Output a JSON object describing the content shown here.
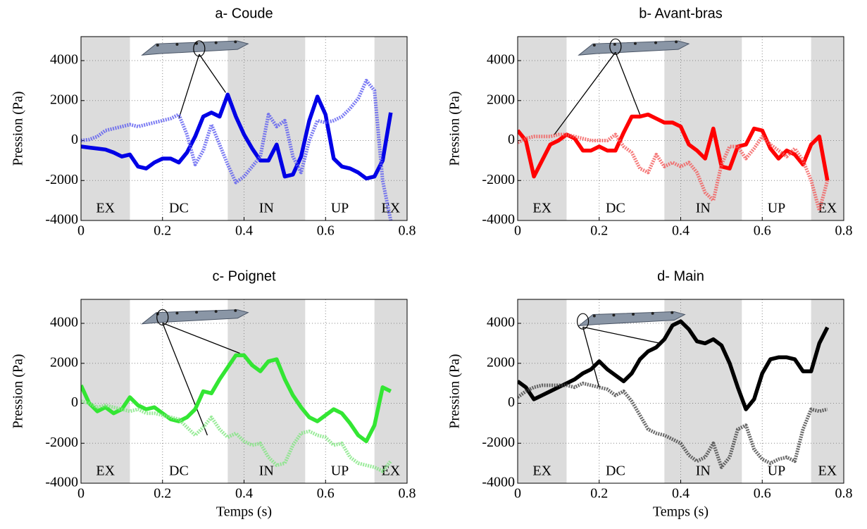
{
  "chart_data": [
    {
      "type": "line",
      "title": "a- Coude",
      "ylabel": "Pression (Pa)",
      "xlim": [
        0,
        0.8
      ],
      "ylim": [
        -4000,
        5200
      ],
      "xticks": [
        0,
        0.2,
        0.4,
        0.6,
        0.8
      ],
      "yticks": [
        -4000,
        -2000,
        0,
        2000,
        4000
      ],
      "grid": true,
      "phases": [
        {
          "label": "EX",
          "start": 0,
          "end": 0.12,
          "shaded": true
        },
        {
          "label": "DC",
          "start": 0.12,
          "end": 0.36,
          "shaded": false
        },
        {
          "label": "IN",
          "start": 0.36,
          "end": 0.55,
          "shaded": true
        },
        {
          "label": "UP",
          "start": 0.55,
          "end": 0.72,
          "shaded": false
        },
        {
          "label": "EX",
          "start": 0.72,
          "end": 0.8,
          "shaded": true
        }
      ],
      "x": [
        0,
        0.02,
        0.04,
        0.06,
        0.08,
        0.1,
        0.12,
        0.14,
        0.16,
        0.18,
        0.2,
        0.22,
        0.24,
        0.26,
        0.28,
        0.3,
        0.32,
        0.34,
        0.36,
        0.38,
        0.4,
        0.42,
        0.44,
        0.46,
        0.48,
        0.5,
        0.52,
        0.54,
        0.56,
        0.58,
        0.6,
        0.62,
        0.64,
        0.66,
        0.68,
        0.7,
        0.72,
        0.74,
        0.76
      ],
      "series": [
        {
          "color": "#0000e6",
          "dash": false,
          "values": [
            -300,
            -350,
            -400,
            -450,
            -600,
            -800,
            -700,
            -1300,
            -1400,
            -1100,
            -900,
            -900,
            -1100,
            -600,
            200,
            1200,
            1400,
            1200,
            2300,
            1200,
            300,
            -400,
            -1000,
            -1000,
            -200,
            -1800,
            -1700,
            -800,
            1000,
            2200,
            1300,
            -900,
            -1300,
            -1400,
            -1600,
            -1900,
            -1800,
            -1000,
            1400
          ]
        },
        {
          "color": "#5b5bf0",
          "dash": true,
          "values": [
            0,
            50,
            200,
            500,
            600,
            700,
            800,
            700,
            800,
            900,
            1000,
            1100,
            1300,
            300,
            -1200,
            -500,
            800,
            -200,
            -1200,
            -2100,
            -1800,
            -1300,
            -800,
            1300,
            700,
            1000,
            -800,
            -1600,
            0,
            1000,
            900,
            1000,
            1200,
            1600,
            2100,
            3000,
            2500,
            -2000,
            -4000
          ]
        }
      ]
    },
    {
      "type": "line",
      "title": "b- Avant-bras",
      "ylabel": "Pression (Pa)",
      "xlim": [
        0,
        0.8
      ],
      "ylim": [
        -4000,
        5200
      ],
      "xticks": [
        0,
        0.2,
        0.4,
        0.6,
        0.8
      ],
      "yticks": [
        -4000,
        -2000,
        0,
        2000,
        4000
      ],
      "grid": true,
      "phases": [
        {
          "label": "EX",
          "start": 0,
          "end": 0.12,
          "shaded": true
        },
        {
          "label": "DC",
          "start": 0.12,
          "end": 0.36,
          "shaded": false
        },
        {
          "label": "IN",
          "start": 0.36,
          "end": 0.55,
          "shaded": true
        },
        {
          "label": "UP",
          "start": 0.55,
          "end": 0.72,
          "shaded": false
        },
        {
          "label": "EX",
          "start": 0.72,
          "end": 0.8,
          "shaded": true
        }
      ],
      "x": [
        0,
        0.02,
        0.04,
        0.06,
        0.08,
        0.1,
        0.12,
        0.14,
        0.16,
        0.18,
        0.2,
        0.22,
        0.24,
        0.26,
        0.28,
        0.3,
        0.32,
        0.34,
        0.36,
        0.38,
        0.4,
        0.42,
        0.44,
        0.46,
        0.48,
        0.5,
        0.52,
        0.54,
        0.56,
        0.58,
        0.6,
        0.62,
        0.64,
        0.66,
        0.68,
        0.7,
        0.72,
        0.74,
        0.76
      ],
      "series": [
        {
          "color": "#ff0000",
          "dash": false,
          "values": [
            500,
            0,
            -1800,
            -1000,
            -200,
            0,
            300,
            100,
            -500,
            -500,
            -300,
            -500,
            -500,
            400,
            1200,
            1200,
            1300,
            1100,
            900,
            900,
            700,
            -200,
            -500,
            -900,
            600,
            -1300,
            -1400,
            -300,
            -200,
            600,
            500,
            -400,
            -900,
            -500,
            -700,
            -1200,
            -200,
            200,
            -2000
          ]
        },
        {
          "color": "#f25a5a",
          "dash": true,
          "values": [
            -100,
            100,
            200,
            200,
            200,
            300,
            300,
            200,
            100,
            0,
            0,
            0,
            300,
            -300,
            -600,
            -1400,
            -1600,
            -700,
            -1300,
            -1100,
            -1300,
            -1100,
            -1600,
            -2600,
            -3000,
            -1200,
            -300,
            -300,
            -900,
            -400,
            200,
            -200,
            -500,
            -800,
            -400,
            -1000,
            -2000,
            -3500,
            -2000
          ]
        }
      ]
    },
    {
      "type": "line",
      "title": "c- Poignet",
      "ylabel": "Pression (Pa)",
      "xlabel": "Temps (s)",
      "xlim": [
        0,
        0.8
      ],
      "ylim": [
        -4000,
        5200
      ],
      "xticks": [
        0,
        0.2,
        0.4,
        0.6,
        0.8
      ],
      "yticks": [
        -4000,
        -2000,
        0,
        2000,
        4000
      ],
      "grid": true,
      "phases": [
        {
          "label": "EX",
          "start": 0,
          "end": 0.12,
          "shaded": true
        },
        {
          "label": "DC",
          "start": 0.12,
          "end": 0.36,
          "shaded": false
        },
        {
          "label": "IN",
          "start": 0.36,
          "end": 0.55,
          "shaded": true
        },
        {
          "label": "UP",
          "start": 0.55,
          "end": 0.72,
          "shaded": false
        },
        {
          "label": "EX",
          "start": 0.72,
          "end": 0.8,
          "shaded": true
        }
      ],
      "x": [
        0,
        0.02,
        0.04,
        0.06,
        0.08,
        0.1,
        0.12,
        0.14,
        0.16,
        0.18,
        0.2,
        0.22,
        0.24,
        0.26,
        0.28,
        0.3,
        0.32,
        0.34,
        0.36,
        0.38,
        0.4,
        0.42,
        0.44,
        0.46,
        0.48,
        0.5,
        0.52,
        0.54,
        0.56,
        0.58,
        0.6,
        0.62,
        0.64,
        0.66,
        0.68,
        0.7,
        0.72,
        0.74,
        0.76
      ],
      "series": [
        {
          "color": "#33e633",
          "dash": false,
          "values": [
            900,
            0,
            -400,
            -200,
            -500,
            -300,
            300,
            -100,
            -300,
            -200,
            -500,
            -800,
            -900,
            -700,
            -300,
            600,
            500,
            1200,
            1800,
            2400,
            2400,
            1900,
            1600,
            2100,
            2200,
            1200,
            400,
            -200,
            -700,
            -900,
            -600,
            -300,
            -500,
            -1000,
            -1600,
            -1900,
            -1100,
            800,
            600
          ]
        },
        {
          "color": "#7fe67f",
          "dash": true,
          "values": [
            100,
            0,
            -200,
            -100,
            -200,
            -300,
            -400,
            -300,
            -500,
            -500,
            -600,
            -700,
            -800,
            -1200,
            -1600,
            -1200,
            -700,
            -1300,
            -1700,
            -1500,
            -1900,
            -2100,
            -2000,
            -2700,
            -3100,
            -3000,
            -2100,
            -1500,
            -1400,
            -1600,
            -1700,
            -2100,
            -2000,
            -2700,
            -3000,
            -3100,
            -3200,
            -3400,
            -2900
          ]
        }
      ]
    },
    {
      "type": "line",
      "title": "d- Main",
      "ylabel": "Pression (Pa)",
      "xlabel": "Temps (s)",
      "xlim": [
        0,
        0.8
      ],
      "ylim": [
        -4000,
        5200
      ],
      "xticks": [
        0,
        0.2,
        0.4,
        0.6,
        0.8
      ],
      "yticks": [
        -4000,
        -2000,
        0,
        2000,
        4000
      ],
      "grid": true,
      "phases": [
        {
          "label": "EX",
          "start": 0,
          "end": 0.12,
          "shaded": true
        },
        {
          "label": "DC",
          "start": 0.12,
          "end": 0.36,
          "shaded": false
        },
        {
          "label": "IN",
          "start": 0.36,
          "end": 0.55,
          "shaded": true
        },
        {
          "label": "UP",
          "start": 0.55,
          "end": 0.72,
          "shaded": false
        },
        {
          "label": "EX",
          "start": 0.72,
          "end": 0.8,
          "shaded": true
        }
      ],
      "x": [
        0,
        0.02,
        0.04,
        0.06,
        0.08,
        0.1,
        0.12,
        0.14,
        0.16,
        0.18,
        0.2,
        0.22,
        0.24,
        0.26,
        0.28,
        0.3,
        0.32,
        0.34,
        0.36,
        0.38,
        0.4,
        0.42,
        0.44,
        0.46,
        0.48,
        0.5,
        0.52,
        0.54,
        0.56,
        0.58,
        0.6,
        0.62,
        0.64,
        0.66,
        0.68,
        0.7,
        0.72,
        0.74,
        0.76
      ],
      "series": [
        {
          "color": "#000000",
          "dash": false,
          "values": [
            1100,
            800,
            200,
            400,
            600,
            800,
            1000,
            1200,
            1500,
            1700,
            2100,
            1700,
            1400,
            1100,
            1500,
            2200,
            2600,
            2800,
            3200,
            3900,
            4100,
            3700,
            3100,
            3000,
            3200,
            2900,
            2000,
            800,
            -300,
            200,
            1500,
            2200,
            2300,
            2300,
            2200,
            1600,
            1600,
            3000,
            3800
          ]
        },
        {
          "color": "#444444",
          "dash": true,
          "values": [
            300,
            600,
            800,
            900,
            900,
            900,
            900,
            800,
            1000,
            900,
            800,
            700,
            400,
            600,
            100,
            -600,
            -1300,
            -1500,
            -1600,
            -1800,
            -2000,
            -2600,
            -2900,
            -2700,
            -2000,
            -3200,
            -2700,
            -1300,
            -1100,
            -2300,
            -2800,
            -3000,
            -2800,
            -2700,
            -2900,
            -1300,
            -300,
            -400,
            -300
          ]
        }
      ]
    }
  ]
}
